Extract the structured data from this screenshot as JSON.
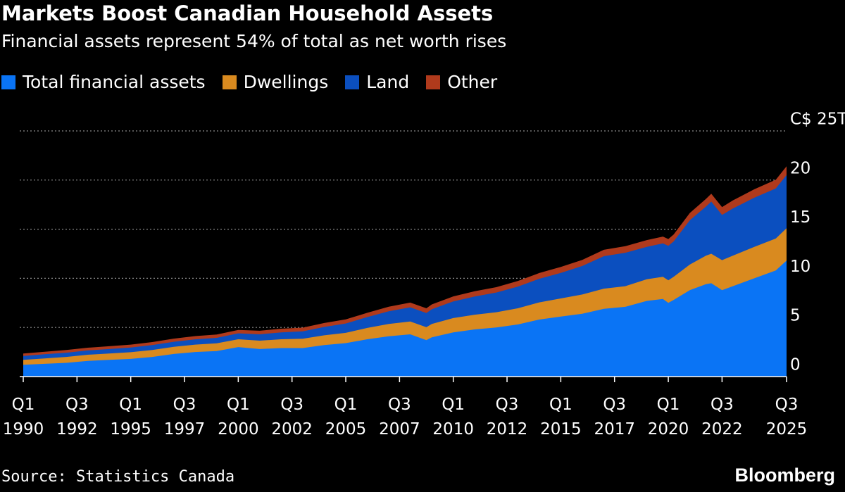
{
  "header": {
    "title": "Markets Boost Canadian Household Assets",
    "subtitle": "Financial assets represent 54% of total as net worth rises"
  },
  "footer": {
    "source": "Source: Statistics Canada",
    "brand": "Bloomberg"
  },
  "colors": {
    "background": "#000000",
    "financial": "#0a74f5",
    "dwellings": "#d98a1f",
    "land": "#0b4fbf",
    "other": "#b03a1c",
    "gridline": "#8a8a8a",
    "text": "#ffffff"
  },
  "chart_data": {
    "type": "area",
    "stacked": true,
    "title": "Markets Boost Canadian Household Assets",
    "subtitle": "Financial assets represent 54% of total as net worth rises",
    "y_unit_label": "C$ 25T",
    "ylim": [
      0,
      25
    ],
    "y_ticks": [
      {
        "value": 25,
        "label": "C$ 25T"
      },
      {
        "value": 20,
        "label": "20"
      },
      {
        "value": 15,
        "label": "15"
      },
      {
        "value": 10,
        "label": "10"
      },
      {
        "value": 5,
        "label": "5"
      },
      {
        "value": 0,
        "label": "0"
      }
    ],
    "x_range": [
      1990.0,
      2025.5
    ],
    "x_ticks": [
      {
        "x": 1990.0,
        "q": "Q1",
        "year": "1990"
      },
      {
        "x": 1992.5,
        "q": "Q3",
        "year": "1992"
      },
      {
        "x": 1995.0,
        "q": "Q1",
        "year": "1995"
      },
      {
        "x": 1997.5,
        "q": "Q3",
        "year": "1997"
      },
      {
        "x": 2000.0,
        "q": "Q1",
        "year": "2000"
      },
      {
        "x": 2002.5,
        "q": "Q3",
        "year": "2002"
      },
      {
        "x": 2005.0,
        "q": "Q1",
        "year": "2005"
      },
      {
        "x": 2007.5,
        "q": "Q3",
        "year": "2007"
      },
      {
        "x": 2010.0,
        "q": "Q1",
        "year": "2010"
      },
      {
        "x": 2012.5,
        "q": "Q3",
        "year": "2012"
      },
      {
        "x": 2015.0,
        "q": "Q1",
        "year": "2015"
      },
      {
        "x": 2017.5,
        "q": "Q3",
        "year": "2017"
      },
      {
        "x": 2020.0,
        "q": "Q1",
        "year": "2020"
      },
      {
        "x": 2022.5,
        "q": "Q3",
        "year": "2022"
      },
      {
        "x": 2025.5,
        "q": "Q3",
        "year": "2025"
      }
    ],
    "grid": true,
    "legend_position": "top-left",
    "x": [
      1990,
      1991,
      1992,
      1993,
      1994,
      1995,
      1996,
      1997,
      1998,
      1999,
      2000,
      2001,
      2002,
      2003,
      2004,
      2005,
      2006,
      2007,
      2008,
      2008.75,
      2009,
      2010,
      2011,
      2012,
      2013,
      2014,
      2015,
      2016,
      2017,
      2018,
      2019,
      2019.75,
      2020,
      2020.25,
      2021,
      2021.75,
      2022,
      2022.5,
      2023,
      2023.5,
      2024,
      2025,
      2025.5
    ],
    "series": [
      {
        "name": "Total financial assets",
        "color": "#0a74f5",
        "values": [
          1.2,
          1.3,
          1.4,
          1.6,
          1.7,
          1.8,
          2.0,
          2.3,
          2.5,
          2.6,
          3.0,
          2.8,
          2.9,
          2.9,
          3.2,
          3.4,
          3.8,
          4.1,
          4.3,
          3.7,
          4.0,
          4.5,
          4.8,
          5.0,
          5.3,
          5.8,
          6.1,
          6.4,
          6.9,
          7.1,
          7.7,
          7.9,
          7.5,
          7.8,
          8.8,
          9.4,
          9.5,
          8.8,
          9.2,
          9.6,
          10.0,
          10.8,
          11.8
        ]
      },
      {
        "name": "Dwellings",
        "color": "#d98a1f",
        "values": [
          0.5,
          0.55,
          0.6,
          0.62,
          0.65,
          0.68,
          0.7,
          0.72,
          0.75,
          0.78,
          0.8,
          0.85,
          0.9,
          0.95,
          1.0,
          1.05,
          1.15,
          1.25,
          1.3,
          1.32,
          1.35,
          1.45,
          1.5,
          1.55,
          1.65,
          1.75,
          1.85,
          1.95,
          2.05,
          2.1,
          2.2,
          2.25,
          2.3,
          2.35,
          2.6,
          2.9,
          3.0,
          3.05,
          3.1,
          3.15,
          3.2,
          3.25,
          3.3
        ]
      },
      {
        "name": "Land",
        "color": "#0b4fbf",
        "values": [
          0.4,
          0.42,
          0.43,
          0.44,
          0.45,
          0.47,
          0.5,
          0.52,
          0.54,
          0.56,
          0.6,
          0.65,
          0.7,
          0.75,
          0.85,
          0.95,
          1.1,
          1.3,
          1.45,
          1.45,
          1.5,
          1.7,
          1.85,
          2.0,
          2.2,
          2.4,
          2.6,
          2.9,
          3.3,
          3.4,
          3.3,
          3.4,
          3.5,
          3.6,
          4.5,
          5.0,
          5.3,
          4.6,
          4.8,
          4.9,
          5.0,
          5.1,
          5.4
        ]
      },
      {
        "name": "Other",
        "color": "#b03a1c",
        "values": [
          0.25,
          0.26,
          0.27,
          0.28,
          0.29,
          0.3,
          0.31,
          0.32,
          0.33,
          0.34,
          0.35,
          0.36,
          0.37,
          0.38,
          0.4,
          0.42,
          0.44,
          0.46,
          0.48,
          0.48,
          0.49,
          0.51,
          0.53,
          0.55,
          0.57,
          0.59,
          0.61,
          0.63,
          0.65,
          0.67,
          0.69,
          0.7,
          0.7,
          0.71,
          0.75,
          0.78,
          0.8,
          0.8,
          0.82,
          0.84,
          0.86,
          0.88,
          0.9
        ]
      }
    ]
  }
}
